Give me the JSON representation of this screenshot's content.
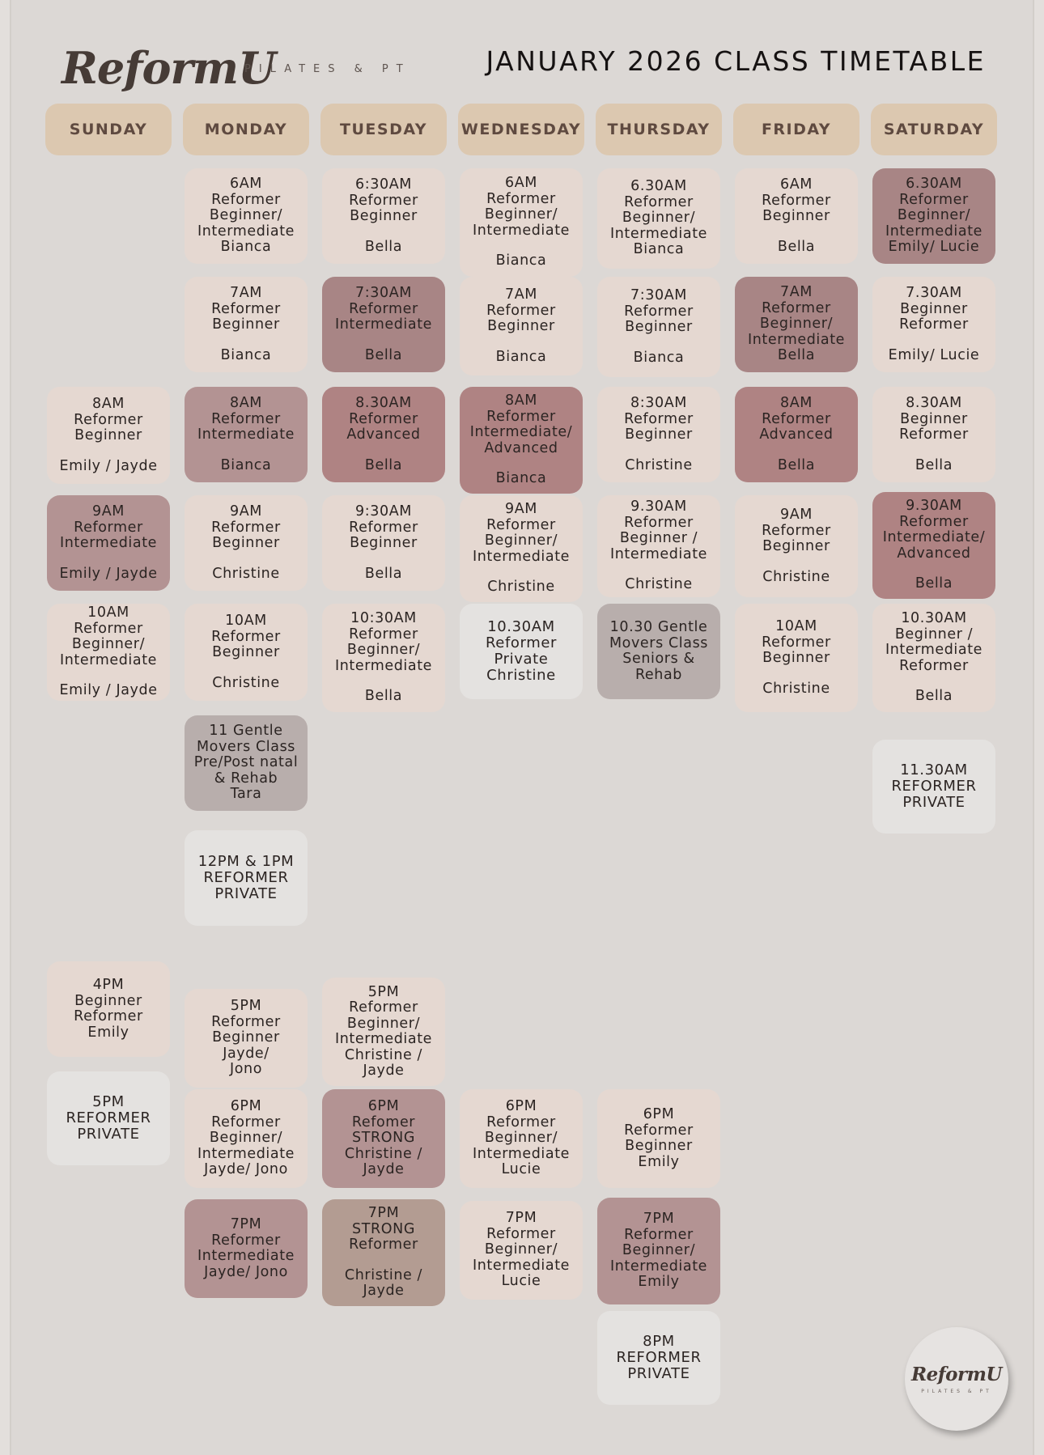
{
  "header": {
    "brand": "ReformU",
    "tagline": "PILATES & PT",
    "title": "JANUARY 2026 CLASS TIMETABLE"
  },
  "badge": {
    "brand": "ReformU",
    "tagline": "PILATES & PT"
  },
  "colors": {
    "light": "#e5d8d1",
    "mauve": "#b39393",
    "rose": "#af8383",
    "deep": "#a88585",
    "grey": "#b8aeac",
    "pale": "#e4e2e0",
    "tan": "#b39c92",
    "day_header": "#dcc8b0"
  },
  "days": [
    "SUNDAY",
    "MONDAY",
    "TUESDAY",
    "WEDNESDAY",
    "THURSDAY",
    "FRIDAY",
    "SATURDAY"
  ],
  "classes": [
    {
      "day": 0,
      "lines": [
        "8AM",
        "Reformer",
        "Beginner"
      ],
      "instructor": "Emily / Jayde",
      "style": "light"
    },
    {
      "day": 0,
      "lines": [
        "9AM",
        "Reformer",
        "Intermediate"
      ],
      "instructor": "Emily / Jayde",
      "style": "mauve"
    },
    {
      "day": 0,
      "lines": [
        "10AM",
        "Reformer",
        "Beginner/",
        "Intermediate"
      ],
      "instructor": "Emily / Jayde",
      "style": "light"
    },
    {
      "day": 0,
      "lines": [
        "4PM",
        "Beginner",
        "Reformer",
        "Emily"
      ],
      "style": "light"
    },
    {
      "day": 0,
      "lines": [
        "5PM",
        "REFORMER",
        "PRIVATE"
      ],
      "style": "pale"
    },
    {
      "day": 1,
      "lines": [
        "6AM",
        "Reformer",
        "Beginner/",
        "Intermediate",
        "Bianca"
      ],
      "style": "light"
    },
    {
      "day": 1,
      "lines": [
        "7AM",
        "Reformer",
        "Beginner"
      ],
      "instructor": "Bianca",
      "style": "light"
    },
    {
      "day": 1,
      "lines": [
        "8AM",
        "Reformer",
        "Intermediate"
      ],
      "instructor": "Bianca",
      "style": "mauve"
    },
    {
      "day": 1,
      "lines": [
        "9AM",
        "Reformer",
        "Beginner"
      ],
      "instructor": "Christine",
      "style": "light"
    },
    {
      "day": 1,
      "lines": [
        "10AM",
        "Reformer",
        "Beginner"
      ],
      "instructor": "Christine",
      "style": "light"
    },
    {
      "day": 1,
      "lines": [
        "11 Gentle",
        "Movers Class",
        "Pre/Post natal",
        "& Rehab",
        "Tara"
      ],
      "style": "grey"
    },
    {
      "day": 1,
      "lines": [
        "12PM & 1PM",
        "REFORMER",
        "PRIVATE"
      ],
      "style": "pale"
    },
    {
      "day": 1,
      "lines": [
        "5PM",
        "Reformer",
        "Beginner",
        "Jayde/",
        "Jono"
      ],
      "style": "light"
    },
    {
      "day": 1,
      "lines": [
        "6PM",
        "Reformer",
        "Beginner/",
        "Intermediate",
        "Jayde/ Jono"
      ],
      "style": "light"
    },
    {
      "day": 1,
      "lines": [
        "7PM",
        "Reformer",
        "Intermediate",
        "Jayde/ Jono"
      ],
      "style": "mauve"
    },
    {
      "day": 2,
      "lines": [
        "6:30AM",
        "Reformer",
        "Beginner"
      ],
      "instructor": "Bella",
      "style": "light"
    },
    {
      "day": 2,
      "lines": [
        "7:30AM",
        "Reformer",
        "Intermediate"
      ],
      "instructor": "Bella",
      "style": "deep"
    },
    {
      "day": 2,
      "lines": [
        "8.30AM",
        "Reformer",
        "Advanced"
      ],
      "instructor": "Bella",
      "style": "rose"
    },
    {
      "day": 2,
      "lines": [
        "9:30AM",
        "Reformer",
        "Beginner"
      ],
      "instructor": "Bella",
      "style": "light"
    },
    {
      "day": 2,
      "lines": [
        "10:30AM",
        "Reformer",
        "Beginner/",
        "Intermediate"
      ],
      "instructor": "Bella",
      "style": "light"
    },
    {
      "day": 2,
      "lines": [
        "5PM",
        "Reformer",
        "Beginner/",
        "Intermediate",
        "Christine /",
        "Jayde"
      ],
      "style": "light"
    },
    {
      "day": 2,
      "lines": [
        "6PM",
        "Refomer",
        "STRONG",
        "Christine /",
        "Jayde"
      ],
      "style": "mauve"
    },
    {
      "day": 2,
      "lines": [
        "7PM",
        "STRONG",
        "Reformer"
      ],
      "instructor": "Christine / Jayde",
      "style": "tan"
    },
    {
      "day": 3,
      "lines": [
        "6AM",
        "Reformer",
        "Beginner/",
        "Intermediate"
      ],
      "instructor": "Bianca",
      "style": "light"
    },
    {
      "day": 3,
      "lines": [
        "7AM",
        "Reformer",
        "Beginner"
      ],
      "instructor": "Bianca",
      "style": "light"
    },
    {
      "day": 3,
      "lines": [
        "8AM",
        "Reformer",
        "Intermediate/",
        "Advanced"
      ],
      "instructor": "Bianca",
      "style": "rose"
    },
    {
      "day": 3,
      "lines": [
        "9AM",
        "Reformer",
        "Beginner/",
        "Intermediate"
      ],
      "instructor": "Christine",
      "style": "light"
    },
    {
      "day": 3,
      "lines": [
        "10.30AM",
        "Reformer",
        "Private",
        "Christine"
      ],
      "style": "pale"
    },
    {
      "day": 3,
      "lines": [
        "6PM",
        "Reformer",
        "Beginner/",
        "Intermediate",
        "Lucie"
      ],
      "style": "light"
    },
    {
      "day": 3,
      "lines": [
        "7PM",
        "Reformer",
        "Beginner/",
        "Intermediate",
        "Lucie"
      ],
      "style": "light"
    },
    {
      "day": 4,
      "lines": [
        "6.30AM",
        "Reformer",
        "Beginner/",
        "Intermediate",
        "Bianca"
      ],
      "style": "light"
    },
    {
      "day": 4,
      "lines": [
        "7:30AM",
        "Reformer",
        "Beginner"
      ],
      "instructor": "Bianca",
      "style": "light"
    },
    {
      "day": 4,
      "lines": [
        "8:30AM",
        "Reformer",
        "Beginner"
      ],
      "instructor": "Christine",
      "style": "light"
    },
    {
      "day": 4,
      "lines": [
        "9.30AM",
        "Reformer",
        "Beginner /",
        "Intermediate"
      ],
      "instructor": "Christine",
      "style": "light"
    },
    {
      "day": 4,
      "lines": [
        "10.30 Gentle",
        "Movers Class",
        "Seniors &",
        "Rehab"
      ],
      "style": "grey"
    },
    {
      "day": 4,
      "lines": [
        "6PM",
        "Reformer",
        "Beginner",
        "Emily"
      ],
      "style": "light"
    },
    {
      "day": 4,
      "lines": [
        "7PM",
        "Reformer",
        "Beginner/",
        "Intermediate",
        "Emily"
      ],
      "style": "mauve"
    },
    {
      "day": 4,
      "lines": [
        "8PM",
        "REFORMER",
        "PRIVATE"
      ],
      "style": "pale"
    },
    {
      "day": 5,
      "lines": [
        "6AM",
        "Reformer",
        "Beginner"
      ],
      "instructor": "Bella",
      "style": "light"
    },
    {
      "day": 5,
      "lines": [
        "7AM",
        "Reformer",
        "Beginner/",
        "Intermediate",
        "Bella"
      ],
      "style": "deep"
    },
    {
      "day": 5,
      "lines": [
        "8AM",
        "Reformer",
        "Advanced"
      ],
      "instructor": "Bella",
      "style": "rose"
    },
    {
      "day": 5,
      "lines": [
        "9AM",
        "Reformer",
        "Beginner"
      ],
      "instructor": "Christine",
      "style": "light"
    },
    {
      "day": 5,
      "lines": [
        "10AM",
        "Reformer",
        "Beginner"
      ],
      "instructor": "Christine",
      "style": "light"
    },
    {
      "day": 6,
      "lines": [
        "6.30AM",
        "Reformer",
        "Beginner/",
        "Intermediate",
        "Emily/ Lucie"
      ],
      "style": "deep"
    },
    {
      "day": 6,
      "lines": [
        "7.30AM",
        "Beginner",
        "Reformer"
      ],
      "instructor": "Emily/ Lucie",
      "style": "light"
    },
    {
      "day": 6,
      "lines": [
        "8.30AM",
        "Beginner",
        "Reformer"
      ],
      "instructor": "Bella",
      "style": "light"
    },
    {
      "day": 6,
      "lines": [
        "9.30AM",
        "Reformer",
        "Intermediate/",
        "Advanced"
      ],
      "instructor": "Bella",
      "style": "rose"
    },
    {
      "day": 6,
      "lines": [
        "10.30AM",
        "Beginner /",
        "Intermediate",
        "Reformer"
      ],
      "instructor": "Bella",
      "style": "light"
    },
    {
      "day": 6,
      "lines": [
        "11.30AM",
        "REFORMER",
        "PRIVATE"
      ],
      "style": "pale"
    }
  ]
}
